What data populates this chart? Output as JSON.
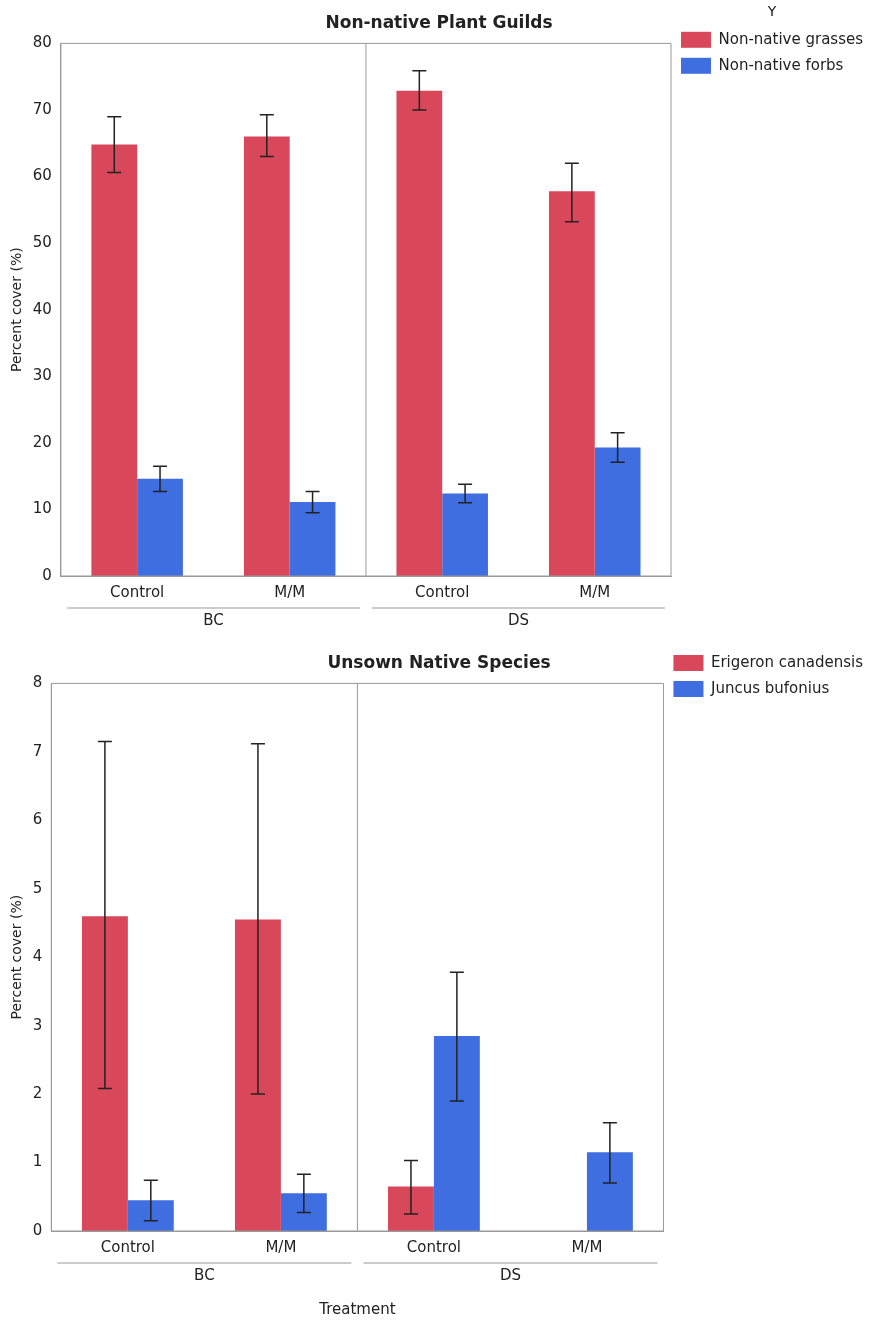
{
  "chart_data": [
    {
      "type": "bar",
      "title": "Non-native Plant Guilds",
      "ylabel": "Percent cover (%)",
      "legend_title": "Y",
      "legend": "top right",
      "grid": false,
      "categories": [
        "Control",
        "M/M",
        "Control",
        "M/M"
      ],
      "annotations": [
        "BC",
        "DS"
      ],
      "ylim": [
        0,
        80
      ],
      "yticks": [
        0,
        10,
        20,
        30,
        40,
        50,
        60,
        70,
        80
      ],
      "series": [
        {
          "name": "Non-native grasses",
          "color": "#d9475a",
          "values": [
            64.8,
            66,
            72.9,
            57.8
          ],
          "errors": [
            [
              60.6,
              69
            ],
            [
              63,
              69.3
            ],
            [
              70,
              75.9
            ],
            [
              53.2,
              62
            ]
          ]
        },
        {
          "name": "Non-native forbs",
          "color": "#3f6ee0",
          "values": [
            14.6,
            11.1,
            12.4,
            19.3
          ],
          "errors": [
            [
              12.7,
              16.5
            ],
            [
              9.5,
              12.7
            ],
            [
              11,
              13.8
            ],
            [
              17.1,
              21.5
            ]
          ]
        }
      ]
    },
    {
      "type": "bar",
      "title": "Unsown Native Species",
      "ylabel": "Percent cover (%)",
      "xlabel": "Treatment",
      "legend": "top right",
      "grid": false,
      "categories": [
        "Control",
        "M/M",
        "Control",
        "M/M"
      ],
      "annotations": [
        "BC",
        "DS"
      ],
      "ylim": [
        0,
        8
      ],
      "yticks": [
        0,
        1,
        2,
        3,
        4,
        5,
        6,
        7,
        8
      ],
      "series": [
        {
          "name": "Erigeron canadensis",
          "color": "#d9475a",
          "values": [
            4.6,
            4.55,
            0.65,
            null
          ],
          "errors": [
            [
              2.08,
              7.15
            ],
            [
              2.0,
              7.12
            ],
            [
              0.25,
              1.03
            ],
            null
          ]
        },
        {
          "name": "Juncus bufonius",
          "color": "#3f6ee0",
          "values": [
            0.45,
            0.55,
            2.85,
            1.15
          ],
          "errors": [
            [
              0.15,
              0.74
            ],
            [
              0.27,
              0.83
            ],
            [
              1.9,
              3.78
            ],
            [
              0.7,
              1.58
            ]
          ]
        }
      ]
    }
  ]
}
